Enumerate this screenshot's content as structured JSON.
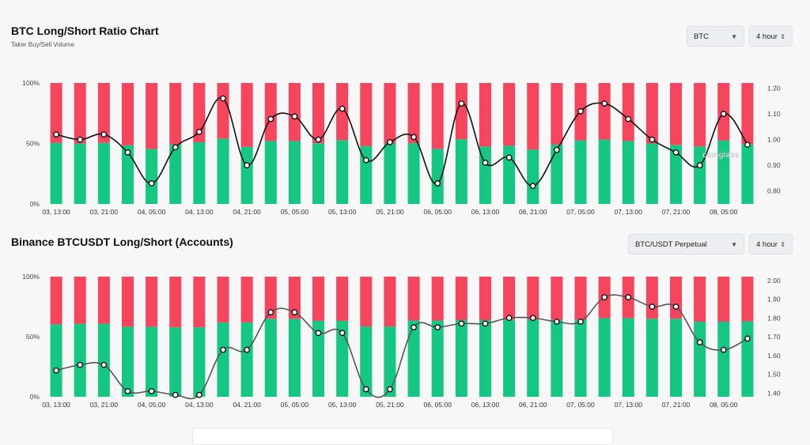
{
  "chart1": {
    "title": "BTC Long/Short Ratio Chart",
    "subtitle": "Taker Buy/Sell Volume",
    "coin_select": "BTC",
    "interval_select": "4 hour",
    "watermark": "coinglass",
    "left_ticks": [
      "100%",
      "50%",
      "0%"
    ],
    "right_ticks": [
      "1.20",
      "1.10",
      "1.00",
      "0.90",
      "0.80"
    ],
    "x_ticks": [
      "03, 13:00",
      "03, 21:00",
      "04, 05:00",
      "04, 13:00",
      "04, 21:00",
      "05, 05:00",
      "05, 13:00",
      "05, 21:00",
      "06, 05:00",
      "06, 13:00",
      "06, 21:00",
      "07, 05:00",
      "07, 13:00",
      "07, 21:00",
      "08, 05:00"
    ]
  },
  "chart2": {
    "title": "Binance BTCUSDT Long/Short (Accounts)",
    "pair_select": "BTC/USDT Perpetual",
    "interval_select": "4 hour",
    "left_ticks": [
      "100%",
      "50%",
      "0%"
    ],
    "right_ticks": [
      "2.00",
      "1.90",
      "1.80",
      "1.70",
      "1.60",
      "1.50",
      "1.40"
    ],
    "x_ticks": [
      "03, 13:00",
      "03, 21:00",
      "04, 05:00",
      "04, 13:00",
      "04, 21:00",
      "05, 05:00",
      "05, 13:00",
      "05, 21:00",
      "06, 05:00",
      "06, 13:00",
      "06, 21:00",
      "07, 05:00",
      "07, 13:00",
      "07, 21:00",
      "08, 05:00"
    ]
  },
  "chart_data": [
    {
      "type": "bar",
      "title": "BTC Long/Short Ratio Chart",
      "subtitle": "Taker Buy/Sell Volume",
      "stacked_percent": true,
      "ylim_left": [
        0,
        100
      ],
      "ylim_right": [
        0.75,
        1.22
      ],
      "series": [
        {
          "name": "",
          "color": "#16c784",
          "values": [
            50.5,
            50,
            50.5,
            48.5,
            45.5,
            49.2,
            51,
            54,
            47.2,
            52,
            52,
            50.2,
            52.8,
            47.8,
            50,
            50.3,
            45.5,
            53.5,
            47.5,
            48.1,
            45,
            49.1,
            52.5,
            53.2,
            52,
            50,
            48.8,
            47.5,
            52.5,
            49.5
          ]
        },
        {
          "name": "",
          "color": "#f6465d",
          "values": [
            49.5,
            50,
            49.5,
            51.5,
            54.5,
            50.8,
            49,
            46,
            52.8,
            48,
            48,
            49.8,
            47.2,
            52.2,
            50,
            49.7,
            54.5,
            46.5,
            52.5,
            51.9,
            55,
            50.9,
            47.5,
            46.8,
            48,
            50,
            51.2,
            52.5,
            47.5,
            50.5
          ]
        },
        {
          "name": "",
          "type": "line",
          "axis": "right",
          "values": [
            1.02,
            1.0,
            1.02,
            0.95,
            0.83,
            0.97,
            1.03,
            1.16,
            0.9,
            1.08,
            1.09,
            1.0,
            1.12,
            0.92,
            0.99,
            1.01,
            0.83,
            1.14,
            0.91,
            0.93,
            0.82,
            0.96,
            1.11,
            1.14,
            1.08,
            1.0,
            0.95,
            0.9,
            1.1,
            0.98
          ]
        }
      ]
    },
    {
      "type": "bar",
      "title": "Binance BTCUSDT Long/Short (Accounts)",
      "stacked_percent": true,
      "ylim_left": [
        0,
        100
      ],
      "ylim_right": [
        1.38,
        2.02
      ],
      "series": [
        {
          "name": "",
          "color": "#16c784",
          "values": [
            60.3,
            60.8,
            60.8,
            58.3,
            58.3,
            57.8,
            57.8,
            61.9,
            61.9,
            64.9,
            64.9,
            63.2,
            63.2,
            58.5,
            58.5,
            63.5,
            63.5,
            63.8,
            63.8,
            64.2,
            64.2,
            64,
            64,
            65.5,
            65.5,
            65,
            65,
            62.5,
            62.5,
            62.8
          ]
        },
        {
          "name": "",
          "color": "#f6465d",
          "values": [
            39.7,
            39.2,
            39.2,
            41.7,
            41.7,
            42.2,
            42.2,
            38.1,
            38.1,
            35.1,
            35.1,
            36.8,
            36.8,
            41.5,
            41.5,
            36.5,
            36.5,
            36.2,
            36.2,
            35.8,
            35.8,
            36,
            36,
            34.5,
            34.5,
            35,
            35,
            37.5,
            37.5,
            37.2
          ]
        },
        {
          "name": "",
          "type": "line",
          "axis": "right",
          "values": [
            1.52,
            1.55,
            1.55,
            1.41,
            1.41,
            1.39,
            1.39,
            1.63,
            1.63,
            1.83,
            1.83,
            1.72,
            1.72,
            1.42,
            1.42,
            1.75,
            1.75,
            1.77,
            1.77,
            1.8,
            1.8,
            1.78,
            1.78,
            1.91,
            1.91,
            1.86,
            1.86,
            1.67,
            1.63,
            1.69
          ]
        }
      ]
    }
  ]
}
